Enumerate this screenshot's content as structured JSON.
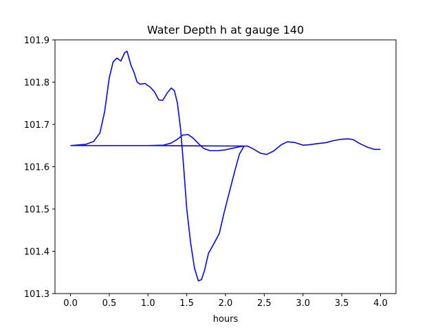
{
  "chart_data": {
    "type": "line",
    "title": "Water Depth h at gauge 140",
    "xlabel": "hours",
    "ylabel": "",
    "xlim": [
      -0.2,
      4.2
    ],
    "ylim": [
      101.3,
      101.9
    ],
    "xticks": [
      0.0,
      0.5,
      1.0,
      1.5,
      2.0,
      2.5,
      3.0,
      3.5,
      4.0
    ],
    "xtick_labels": [
      "0.0",
      "0.5",
      "1.0",
      "1.5",
      "2.0",
      "2.5",
      "3.0",
      "3.5",
      "4.0"
    ],
    "yticks": [
      101.3,
      101.4,
      101.5,
      101.6,
      101.7,
      101.8,
      101.9
    ],
    "ytick_labels": [
      "101.3",
      "101.4",
      "101.5",
      "101.6",
      "101.7",
      "101.8",
      "101.9"
    ],
    "grid": false,
    "series": [
      {
        "color": "#0000ff",
        "points": [
          [
            0.0,
            101.65
          ],
          [
            0.2,
            101.653
          ],
          [
            0.3,
            101.66
          ],
          [
            0.38,
            101.68
          ],
          [
            0.44,
            101.73
          ],
          [
            0.5,
            101.81
          ],
          [
            0.55,
            101.848
          ],
          [
            0.6,
            101.857
          ],
          [
            0.65,
            101.85
          ],
          [
            0.7,
            101.87
          ],
          [
            0.73,
            101.873
          ],
          [
            0.78,
            101.84
          ],
          [
            0.82,
            101.823
          ],
          [
            0.86,
            101.8
          ],
          [
            0.9,
            101.795
          ],
          [
            0.96,
            101.797
          ],
          [
            1.03,
            101.788
          ],
          [
            1.08,
            101.778
          ],
          [
            1.14,
            101.758
          ],
          [
            1.19,
            101.757
          ],
          [
            1.25,
            101.775
          ],
          [
            1.3,
            101.786
          ],
          [
            1.34,
            101.78
          ],
          [
            1.38,
            101.75
          ],
          [
            1.42,
            101.69
          ],
          [
            1.46,
            101.6
          ],
          [
            1.5,
            101.5
          ],
          [
            1.55,
            101.42
          ],
          [
            1.6,
            101.36
          ],
          [
            1.65,
            101.33
          ],
          [
            1.69,
            101.333
          ],
          [
            1.73,
            101.355
          ],
          [
            1.78,
            101.395
          ],
          [
            1.85,
            101.418
          ],
          [
            1.92,
            101.442
          ],
          [
            1.98,
            101.49
          ],
          [
            2.05,
            101.54
          ],
          [
            2.12,
            101.59
          ],
          [
            2.18,
            101.63
          ],
          [
            2.24,
            101.649
          ],
          [
            2.0,
            101.649
          ],
          [
            1.0,
            101.65
          ],
          [
            0.0,
            101.65
          ]
        ]
      },
      {
        "color": "#0000ff",
        "points": [
          [
            0.0,
            101.65
          ],
          [
            0.6,
            101.65
          ],
          [
            1.0,
            101.65
          ],
          [
            1.2,
            101.651
          ],
          [
            1.3,
            101.656
          ],
          [
            1.38,
            101.665
          ],
          [
            1.45,
            101.675
          ],
          [
            1.52,
            101.676
          ],
          [
            1.58,
            101.668
          ],
          [
            1.65,
            101.655
          ],
          [
            1.72,
            101.643
          ],
          [
            1.8,
            101.638
          ],
          [
            1.9,
            101.638
          ],
          [
            2.0,
            101.64
          ],
          [
            2.1,
            101.644
          ],
          [
            2.2,
            101.648
          ],
          [
            2.28,
            101.649
          ],
          [
            2.35,
            101.643
          ],
          [
            2.45,
            101.632
          ],
          [
            2.53,
            101.629
          ],
          [
            2.62,
            101.637
          ],
          [
            2.72,
            101.652
          ],
          [
            2.8,
            101.659
          ],
          [
            2.9,
            101.657
          ],
          [
            3.0,
            101.651
          ],
          [
            3.08,
            101.652
          ],
          [
            3.2,
            101.655
          ],
          [
            3.3,
            101.657
          ],
          [
            3.4,
            101.662
          ],
          [
            3.5,
            101.665
          ],
          [
            3.58,
            101.666
          ],
          [
            3.65,
            101.664
          ],
          [
            3.72,
            101.656
          ],
          [
            3.82,
            101.647
          ],
          [
            3.92,
            101.641
          ],
          [
            4.0,
            101.641
          ]
        ]
      }
    ]
  }
}
